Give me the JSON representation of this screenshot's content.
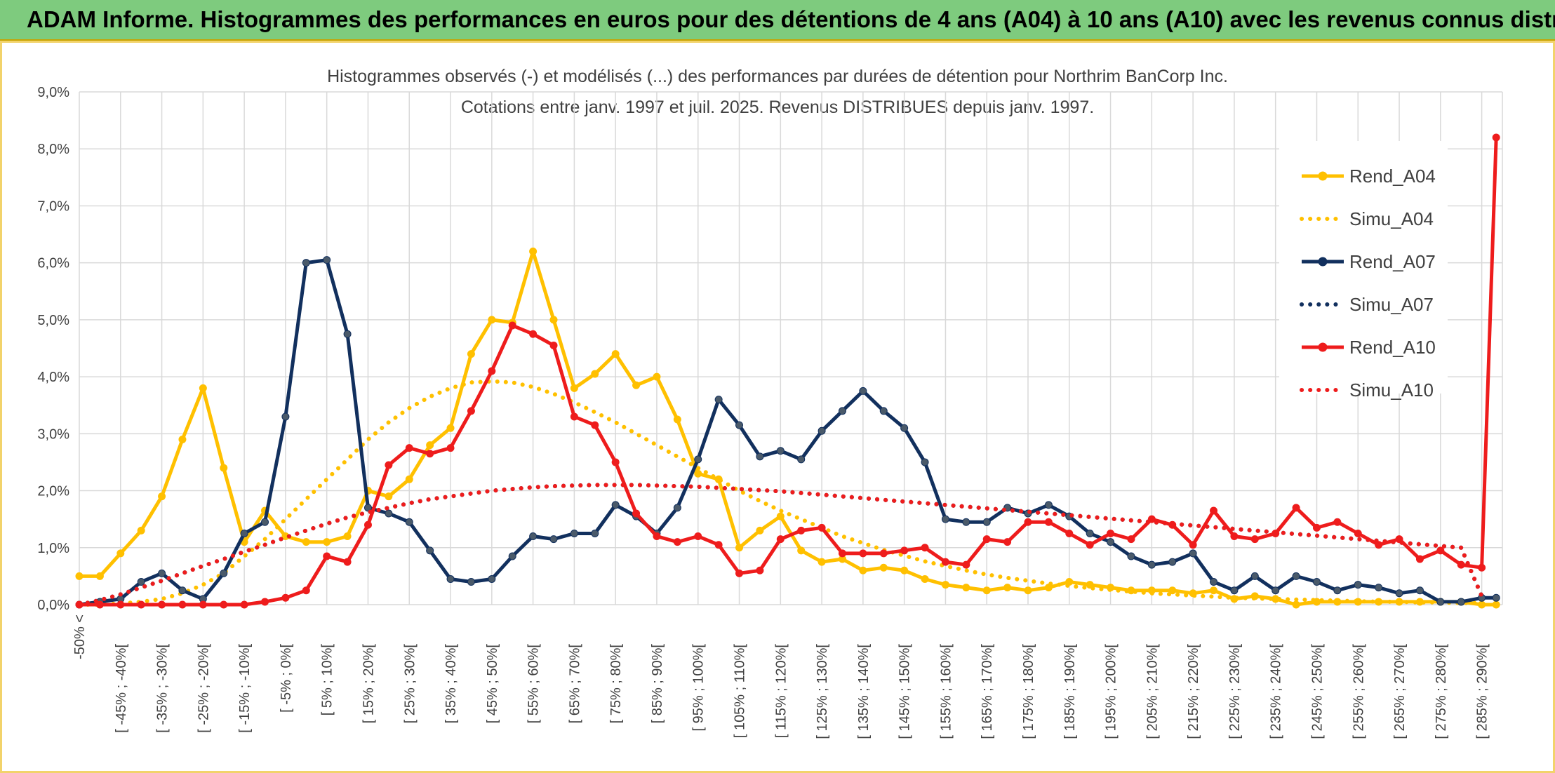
{
  "banner": {
    "title": "ADAM Informe. Histogrammes des performances en euros pour des détentions de 4 ans (A04) à 10 ans (A10) avec les revenus connus distribués",
    "background": "#7ecb7e"
  },
  "chart_data": {
    "type": "line",
    "title": "Histogrammes observés (-) et modélisés (...) des performances par durées de détention pour Northrim BanCorp Inc.",
    "subtitle": "Cotations entre janv. 1997 et juil. 2025. Revenus DISTRIBUES depuis janv. 1997.",
    "xlabel": "",
    "ylabel": "",
    "ylim": [
      0,
      9
    ],
    "yticks": [
      "0,0%",
      "1,0%",
      "2,0%",
      "3,0%",
      "4,0%",
      "5,0%",
      "6,0%",
      "7,0%",
      "8,0%",
      "9,0%"
    ],
    "grid": true,
    "legend_position": "top-right",
    "x_tick_labels": [
      "-50% <",
      "[ -45% ; -40%[",
      "[ -35% ; -30%[",
      "[ -25% ; -20%[",
      "[ -15% ; -10%[",
      "[ -5% ; 0%[",
      "[ 5% ; 10%[",
      "[ 15% ; 20%[",
      "[ 25% ; 30%[",
      "[ 35% ; 40%[",
      "[ 45% ; 50%[",
      "[ 55% ; 60%[",
      "[ 65% ; 70%[",
      "[ 75% ; 80%[",
      "[ 85% ; 90%[",
      "[ 95% ; 100%[",
      "[ 105% ; 110%[",
      "[ 115% ; 120%[",
      "[ 125% ; 130%[",
      "[ 135% ; 140%[",
      "[ 145% ; 150%[",
      "[ 155% ; 160%[",
      "[ 165% ; 170%[",
      "[ 175% ; 180%[",
      "[ 185% ; 190%[",
      "[ 195% ; 200%[",
      "[ 205% ; 210%[",
      "[ 215% ; 220%[",
      "[ 225% ; 230%[",
      "[ 235% ; 240%[",
      "[ 245% ; 250%[",
      "[ 255% ; 260%[",
      "[ 265% ; 270%[",
      "[ 275% ; 280%[",
      "[ 285% ; 290%["
    ],
    "series": [
      {
        "name": "Rend_A04",
        "style": "solid",
        "color": "#ffc000",
        "values": [
          0.5,
          0.5,
          0.9,
          1.3,
          1.9,
          2.9,
          3.8,
          2.4,
          1.1,
          1.65,
          1.2,
          1.1,
          1.1,
          1.2,
          2.0,
          1.9,
          2.2,
          2.8,
          3.1,
          4.4,
          5.0,
          4.95,
          6.2,
          5.0,
          3.8,
          4.05,
          4.4,
          3.85,
          4.0,
          3.25,
          2.3,
          2.2,
          1.0,
          1.3,
          1.55,
          0.95,
          0.75,
          0.8,
          0.6,
          0.65,
          0.6,
          0.45,
          0.35,
          0.3,
          0.25,
          0.3,
          0.25,
          0.3,
          0.4,
          0.35,
          0.3,
          0.25,
          0.25,
          0.25,
          0.2,
          0.25,
          0.1,
          0.15,
          0.1,
          0.0,
          0.05,
          0.05,
          0.05,
          0.05,
          0.05,
          0.05,
          0.05,
          0.05,
          0.0
        ]
      },
      {
        "name": "Simu_A04",
        "style": "dotted",
        "color": "#ffc000",
        "values": [
          0.0,
          0.0,
          0.02,
          0.05,
          0.1,
          0.2,
          0.35,
          0.55,
          0.85,
          1.15,
          1.5,
          1.85,
          2.2,
          2.55,
          2.9,
          3.2,
          3.45,
          3.65,
          3.8,
          3.9,
          3.92,
          3.9,
          3.82,
          3.7,
          3.55,
          3.38,
          3.2,
          3.0,
          2.8,
          2.6,
          2.4,
          2.2,
          2.0,
          1.82,
          1.65,
          1.5,
          1.35,
          1.2,
          1.08,
          0.96,
          0.86,
          0.76,
          0.68,
          0.6,
          0.53,
          0.47,
          0.42,
          0.37,
          0.33,
          0.29,
          0.26,
          0.23,
          0.2,
          0.18,
          0.16,
          0.14,
          0.12,
          0.11,
          0.1,
          0.09,
          0.08,
          0.07,
          0.06,
          0.05,
          0.05,
          0.04,
          0.04,
          0.03,
          0.03
        ]
      },
      {
        "name": "Rend_A07",
        "style": "solid",
        "color": "#12305e",
        "values": [
          0.0,
          0.05,
          0.1,
          0.4,
          0.55,
          0.25,
          0.1,
          0.55,
          1.25,
          1.45,
          3.3,
          6.0,
          6.05,
          4.75,
          1.7,
          1.6,
          1.45,
          0.95,
          0.45,
          0.4,
          0.45,
          0.85,
          1.2,
          1.15,
          1.25,
          1.25,
          1.75,
          1.55,
          1.25,
          1.7,
          2.55,
          3.6,
          3.15,
          2.6,
          2.7,
          2.55,
          3.05,
          3.4,
          3.75,
          3.4,
          3.1,
          2.5,
          1.5,
          1.45,
          1.45,
          1.7,
          1.6,
          1.75,
          1.55,
          1.25,
          1.1,
          0.85,
          0.7,
          0.75,
          0.9,
          0.4,
          0.25,
          0.5,
          0.25,
          0.5,
          0.4,
          0.25,
          0.35,
          0.3,
          0.2,
          0.25,
          0.05,
          0.05,
          0.12
        ]
      },
      {
        "name": "Simu_A07",
        "style": "dotted",
        "color": "#12305e",
        "values": [
          0.0,
          0.08,
          0.18,
          0.3,
          0.42,
          0.55,
          0.68,
          0.8,
          0.93,
          1.05,
          1.18,
          1.3,
          1.42,
          1.53,
          1.62,
          1.7,
          1.78,
          1.85,
          1.9,
          1.95,
          2.0,
          2.03,
          2.06,
          2.08,
          2.09,
          2.1,
          2.1,
          2.1,
          2.09,
          2.08,
          2.07,
          2.05,
          2.03,
          2.01,
          1.99,
          1.96,
          1.93,
          1.9,
          1.87,
          1.84,
          1.81,
          1.78,
          1.75,
          1.72,
          1.69,
          1.66,
          1.63,
          1.6,
          1.57,
          1.54,
          1.51,
          1.48,
          1.45,
          1.42,
          1.39,
          1.36,
          1.33,
          1.3,
          1.27,
          1.24,
          1.21,
          1.18,
          1.15,
          1.12,
          1.09,
          1.06,
          1.03,
          1.0,
          0.15
        ]
      },
      {
        "name": "Rend_A10",
        "style": "solid",
        "color": "#ee1c1c",
        "values": [
          0.0,
          0.0,
          0.0,
          0.0,
          0.0,
          0.0,
          0.0,
          0.0,
          0.0,
          0.05,
          0.12,
          0.25,
          0.85,
          0.75,
          1.4,
          2.45,
          2.75,
          2.65,
          2.75,
          3.4,
          4.1,
          4.9,
          4.75,
          4.55,
          3.3,
          3.15,
          2.5,
          1.6,
          1.2,
          1.1,
          1.2,
          1.05,
          0.55,
          0.6,
          1.15,
          1.3,
          1.35,
          0.9,
          0.9,
          0.9,
          0.95,
          1.0,
          0.75,
          0.7,
          1.15,
          1.1,
          1.45,
          1.45,
          1.25,
          1.05,
          1.25,
          1.15,
          1.5,
          1.4,
          1.05,
          1.65,
          1.2,
          1.15,
          1.25,
          1.7,
          1.35,
          1.45,
          1.25,
          1.05,
          1.15,
          0.8,
          0.95,
          0.7,
          0.65
        ]
      },
      {
        "name": "Simu_A10",
        "style": "dotted",
        "color": "#ee1c1c",
        "values": [
          0.0,
          0.08,
          0.18,
          0.3,
          0.42,
          0.55,
          0.68,
          0.8,
          0.93,
          1.05,
          1.18,
          1.3,
          1.42,
          1.53,
          1.62,
          1.7,
          1.78,
          1.85,
          1.9,
          1.95,
          2.0,
          2.03,
          2.06,
          2.08,
          2.09,
          2.1,
          2.1,
          2.1,
          2.09,
          2.08,
          2.07,
          2.05,
          2.03,
          2.01,
          1.99,
          1.96,
          1.93,
          1.9,
          1.87,
          1.84,
          1.81,
          1.78,
          1.75,
          1.72,
          1.69,
          1.66,
          1.63,
          1.6,
          1.57,
          1.54,
          1.51,
          1.48,
          1.45,
          1.42,
          1.39,
          1.36,
          1.33,
          1.3,
          1.27,
          1.24,
          1.21,
          1.18,
          1.15,
          1.12,
          1.09,
          1.06,
          1.03,
          1.0,
          0.15
        ]
      }
    ],
    "tail_points": {
      "Rend_A04": 0.0,
      "Rend_A07": 0.12,
      "Rend_A10": 8.2
    }
  }
}
